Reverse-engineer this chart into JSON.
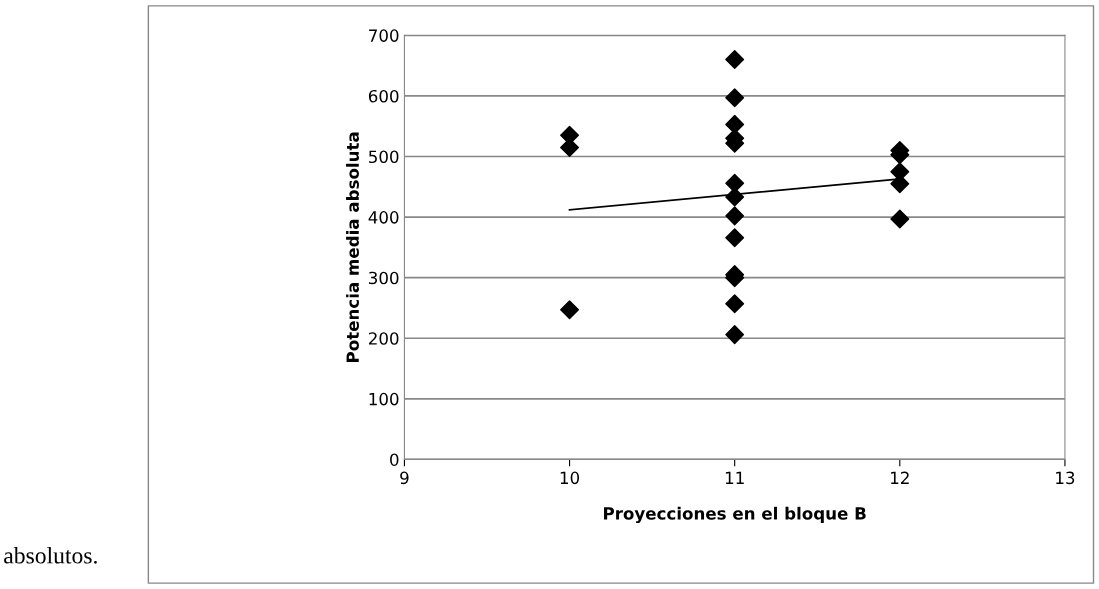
{
  "chart_data": {
    "type": "scatter",
    "xlabel": "Proyecciones en el bloque B",
    "ylabel": "Potencia media absoluta",
    "series": [
      {
        "color": "#000000",
        "marker": "diamond",
        "x": [
          10,
          10,
          10,
          11,
          11,
          11,
          11,
          11,
          11,
          11,
          11,
          11,
          11,
          11,
          11,
          11,
          12,
          12,
          12,
          12,
          12
        ],
        "values": [
          535,
          515,
          247,
          660,
          597,
          553,
          530,
          522,
          456,
          433,
          402,
          366,
          305,
          300,
          257,
          206,
          510,
          503,
          475,
          455,
          397
        ]
      },
      {
        "type": "line",
        "color": "#000000",
        "x": [
          10,
          12
        ],
        "values": [
          412,
          463
        ]
      }
    ],
    "xlim": [
      9,
      13
    ],
    "xticks": [
      9,
      10,
      11,
      12,
      13
    ],
    "ylim": [
      0,
      700
    ],
    "yticks": [
      0,
      100,
      200,
      300,
      400,
      500,
      600,
      700
    ],
    "grid": "y",
    "legend": false,
    "annotations": [
      "absolutos."
    ]
  }
}
